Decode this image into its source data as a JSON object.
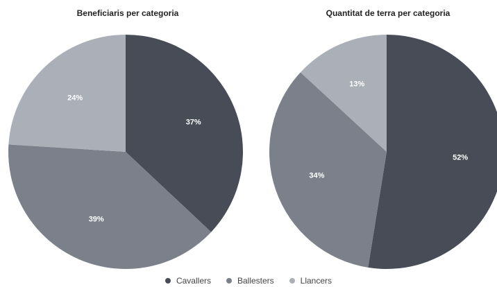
{
  "chart_data": [
    {
      "type": "pie",
      "title": "Beneficiaris per categoria",
      "categories": [
        "Cavallers",
        "Ballesters",
        "Llancers"
      ],
      "values": [
        37,
        39,
        24
      ],
      "labels": [
        "37%",
        "39%",
        "24%"
      ],
      "colors": [
        "#474c56",
        "#7b808a",
        "#abafb7"
      ]
    },
    {
      "type": "pie",
      "title": "Quantitat de terra per categoria",
      "categories": [
        "Cavallers",
        "Ballesters",
        "Llancers"
      ],
      "values": [
        52,
        34,
        13
      ],
      "labels": [
        "52%",
        "34%",
        "13%"
      ],
      "colors": [
        "#474c56",
        "#7b808a",
        "#abafb7"
      ]
    }
  ],
  "legend": {
    "position": "bottom-center",
    "items": [
      {
        "label": "Cavallers",
        "color": "#474c56"
      },
      {
        "label": "Ballesters",
        "color": "#7b808a"
      },
      {
        "label": "Llancers",
        "color": "#abafb7"
      }
    ]
  }
}
